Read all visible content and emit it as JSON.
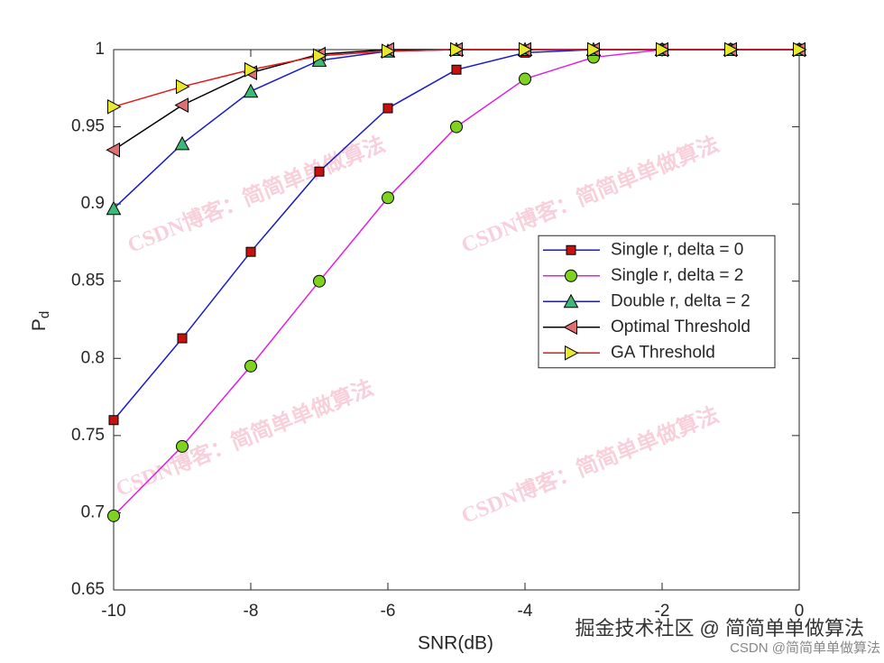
{
  "chart_data": {
    "type": "line",
    "xlabel": "SNR(dB)",
    "ylabel": "P",
    "ylabel_subscript": "d",
    "x": [
      -10,
      -9,
      -8,
      -7,
      -6,
      -5,
      -4,
      -3,
      -2,
      -1,
      0
    ],
    "xlim": [
      -10,
      0
    ],
    "xticks": [
      -10,
      -8,
      -6,
      -4,
      -2,
      0
    ],
    "ylim": [
      0.65,
      1
    ],
    "yticks": [
      0.65,
      0.7,
      0.75,
      0.8,
      0.85,
      0.9,
      0.95,
      1
    ],
    "legend": "east",
    "series": [
      {
        "name": "Single r, delta = 0",
        "color": "#1a1acc",
        "marker": "square",
        "marker_color": "#c81010",
        "values": [
          0.76,
          0.813,
          0.869,
          0.921,
          0.962,
          0.987,
          0.998,
          1.0,
          1.0,
          1.0,
          1.0
        ]
      },
      {
        "name": "Single r, delta = 2",
        "color": "#e020e0",
        "marker": "circle",
        "marker_color": "#7fd320",
        "values": [
          0.698,
          0.743,
          0.795,
          0.85,
          0.904,
          0.95,
          0.981,
          0.995,
          1.0,
          1.0,
          1.0
        ]
      },
      {
        "name": "Double r, delta = 2",
        "color": "#1a1acc",
        "marker": "triangle-up",
        "marker_color": "#3cb878",
        "values": [
          0.897,
          0.939,
          0.973,
          0.993,
          0.999,
          1.0,
          1.0,
          1.0,
          1.0,
          1.0,
          1.0
        ]
      },
      {
        "name": "Optimal Threshold",
        "color": "#000000",
        "marker": "triangle-left",
        "marker_color": "#e07070",
        "values": [
          0.935,
          0.964,
          0.985,
          0.997,
          1.0,
          1.0,
          1.0,
          1.0,
          1.0,
          1.0,
          1.0
        ]
      },
      {
        "name": "GA Threshold",
        "color": "#e01a1a",
        "marker": "triangle-right",
        "marker_color": "#e8e830",
        "values": [
          0.963,
          0.976,
          0.987,
          0.996,
          0.999,
          1.0,
          1.0,
          1.0,
          1.0,
          1.0,
          1.0
        ]
      }
    ]
  },
  "watermark": "CSDN博客：简简单单做算法",
  "footer": {
    "source": "掘金技术社区 @ 简简单单做算法",
    "credit": "CSDN @简简单单做算法"
  }
}
